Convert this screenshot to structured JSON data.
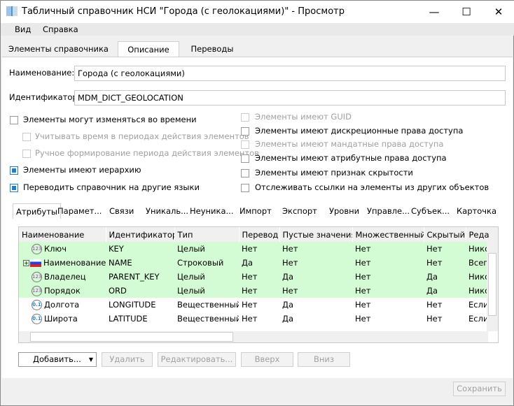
{
  "window": {
    "title": "Табличный справочник НСИ \"Города (с геолокациями)\" - Просмотр",
    "minimize": "—",
    "maximize": "☐",
    "close": "✕"
  },
  "menu": [
    "Вид",
    "Справка"
  ],
  "tabs": [
    "Элементы справочника",
    "Описание",
    "Переводы"
  ],
  "active_tab": "Описание",
  "form": {
    "name_label": "Наименование:",
    "name_value": "Города (с геолокациями)",
    "id_label": "Идентификатор:",
    "id_value": "MDM_DICT_GEOLOCATION"
  },
  "checkboxes_left": [
    {
      "label": "Элементы могут изменяться во времени",
      "checked": false,
      "enabled": true
    },
    {
      "label": "Учитывать время в периодах действия элементов",
      "checked": false,
      "enabled": false
    },
    {
      "label": "Ручное формирование периода действия элементов",
      "checked": false,
      "enabled": false
    },
    {
      "label": "Элементы имеют иерархию",
      "checked": true,
      "enabled": true
    },
    {
      "label": "Переводить справочник на другие языки",
      "checked": true,
      "enabled": true
    }
  ],
  "checkboxes_right": [
    {
      "label": "Элементы имеют GUID",
      "checked": false,
      "enabled": false
    },
    {
      "label": "Элементы имеют дискреционные права доступа",
      "checked": false,
      "enabled": true
    },
    {
      "label": "Элементы имеют мандатные права доступа",
      "checked": false,
      "enabled": false
    },
    {
      "label": "Элементы имеют атрибутные права доступа",
      "checked": false,
      "enabled": true
    },
    {
      "label": "Элементы имеют признак скрытости",
      "checked": false,
      "enabled": true
    },
    {
      "label": "Отслеживать ссылки на элементы из других объектов",
      "checked": false,
      "enabled": true
    }
  ],
  "inner_tabs": [
    "Атрибуты",
    "Парамет...",
    "Связи",
    "Уникаль...",
    "Неуника...",
    "Импорт",
    "Экспорт",
    "Уровни",
    "Управле...",
    "Субъек...",
    "Карточка"
  ],
  "grid": {
    "columns": [
      "Наименование",
      "Идентификатор",
      "Тип",
      "Перевод",
      "Пустые значения",
      "Множественный",
      "Скрытый",
      "Реда"
    ],
    "rows": [
      {
        "icon": "integer-icon",
        "name": "Ключ",
        "id": "KEY",
        "type": "Целый",
        "translate": "Нет",
        "empty": "Нет",
        "multiple": "Нет",
        "hidden": "Нет",
        "edit": "Никогда",
        "highlight": true
      },
      {
        "icon": "flag-ru-icon",
        "name": "Наименование",
        "id": "NAME",
        "type": "Строковый",
        "translate": "Да",
        "empty": "Нет",
        "multiple": "Нет",
        "hidden": "Нет",
        "edit": "Всегда",
        "highlight": true,
        "expandable": true
      },
      {
        "icon": "integer-icon",
        "name": "Владелец",
        "id": "PARENT_KEY",
        "type": "Целый",
        "translate": "Нет",
        "empty": "Да",
        "multiple": "Нет",
        "hidden": "Да",
        "edit": "Никогда",
        "highlight": true
      },
      {
        "icon": "integer-icon",
        "name": "Порядок",
        "id": "ORD",
        "type": "Целый",
        "translate": "Нет",
        "empty": "Нет",
        "multiple": "Нет",
        "hidden": "Да",
        "edit": "Никогда",
        "highlight": true
      },
      {
        "icon": "real-icon",
        "name": "Долгота",
        "id": "LONGITUDE",
        "type": "Вещественный",
        "translate": "Нет",
        "empty": "Да",
        "multiple": "Нет",
        "hidden": "Нет",
        "edit": "Если",
        "highlight": false
      },
      {
        "icon": "real-icon",
        "name": "Широта",
        "id": "LATITUDE",
        "type": "Вещественный",
        "translate": "Нет",
        "empty": "Да",
        "multiple": "Нет",
        "hidden": "Нет",
        "edit": "Если",
        "highlight": false
      }
    ]
  },
  "buttons": {
    "add": "Добавить...",
    "delete": "Удалить",
    "edit": "Редактировать...",
    "up": "Вверх",
    "down": "Вниз",
    "save": "Сохранить"
  },
  "colors": {
    "highlight_row": "#d4fcd4",
    "checkbox_accent": "#1c7fd6"
  }
}
